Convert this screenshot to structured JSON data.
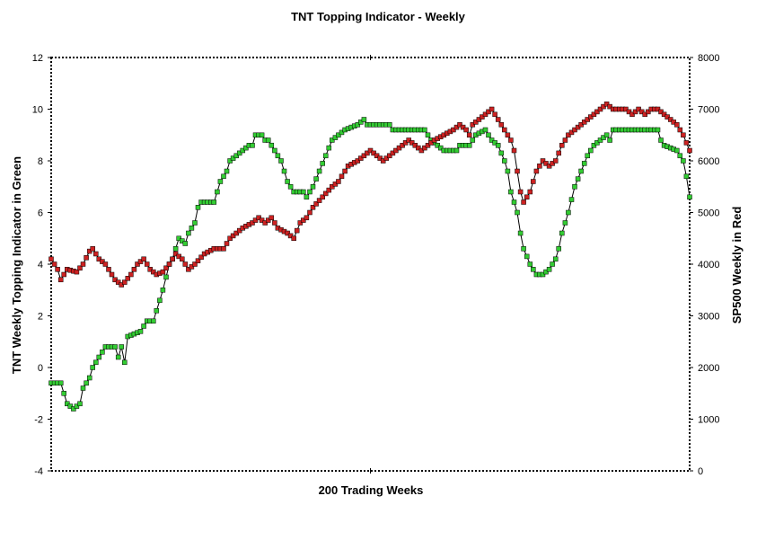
{
  "chart_data": {
    "type": "line",
    "title": "TNT Topping Indicator - Weekly",
    "xlabel": "200 Trading Weeks",
    "ylabel": "TNT Weekly Topping Indicator in Green",
    "y2label": "SP500 Weekly in Red",
    "ylim": [
      -4,
      12
    ],
    "y2lim": [
      0,
      8000
    ],
    "yticks": [
      "12",
      "10",
      "8",
      "6",
      "4",
      "2",
      "0",
      "-2",
      "-4"
    ],
    "y2ticks": [
      "8000",
      "7000",
      "6000",
      "5000",
      "4000",
      "3000",
      "2000",
      "1000",
      "0"
    ],
    "xlim": [
      0,
      200
    ],
    "grid": false,
    "legend": "none",
    "colors": {
      "indicator": "#33cc33",
      "sp500": "#cc2222",
      "line": "#000000"
    },
    "series": [
      {
        "axis": "left",
        "keypoints": [
          [
            0,
            -0.6
          ],
          [
            3,
            -0.6
          ],
          [
            5,
            -1.4
          ],
          [
            7,
            -1.6
          ],
          [
            9,
            -1.4
          ],
          [
            10,
            -0.8
          ],
          [
            12,
            -0.4
          ],
          [
            13,
            0
          ],
          [
            15,
            0.4
          ],
          [
            17,
            0.8
          ],
          [
            20,
            0.8
          ],
          [
            21,
            0.4
          ],
          [
            22,
            0.8
          ],
          [
            23,
            0.2
          ],
          [
            24,
            1.2
          ],
          [
            26,
            1.3
          ],
          [
            28,
            1.4
          ],
          [
            30,
            1.8
          ],
          [
            32,
            1.8
          ],
          [
            33,
            2.2
          ],
          [
            35,
            3.0
          ],
          [
            37,
            4.0
          ],
          [
            38,
            4.2
          ],
          [
            39,
            4.6
          ],
          [
            40,
            5.0
          ],
          [
            42,
            4.8
          ],
          [
            43,
            5.2
          ],
          [
            45,
            5.6
          ],
          [
            46,
            6.2
          ],
          [
            47,
            6.4
          ],
          [
            51,
            6.4
          ],
          [
            52,
            6.8
          ],
          [
            53,
            7.2
          ],
          [
            55,
            7.6
          ],
          [
            56,
            8.0
          ],
          [
            58,
            8.2
          ],
          [
            60,
            8.4
          ],
          [
            62,
            8.6
          ],
          [
            63,
            8.6
          ],
          [
            64,
            9.0
          ],
          [
            66,
            9.0
          ],
          [
            67,
            8.8
          ],
          [
            68,
            8.8
          ],
          [
            70,
            8.4
          ],
          [
            72,
            8.0
          ],
          [
            73,
            7.6
          ],
          [
            74,
            7.2
          ],
          [
            76,
            6.8
          ],
          [
            79,
            6.8
          ],
          [
            80,
            6.6
          ],
          [
            82,
            7.0
          ],
          [
            84,
            7.6
          ],
          [
            86,
            8.2
          ],
          [
            88,
            8.8
          ],
          [
            90,
            9.0
          ],
          [
            92,
            9.2
          ],
          [
            96,
            9.4
          ],
          [
            98,
            9.6
          ],
          [
            99,
            9.4
          ],
          [
            106,
            9.4
          ],
          [
            107,
            9.2
          ],
          [
            117,
            9.2
          ],
          [
            119,
            8.8
          ],
          [
            121,
            8.6
          ],
          [
            123,
            8.4
          ],
          [
            127,
            8.4
          ],
          [
            128,
            8.6
          ],
          [
            131,
            8.6
          ],
          [
            133,
            9.0
          ],
          [
            136,
            9.2
          ],
          [
            138,
            8.8
          ],
          [
            140,
            8.6
          ],
          [
            142,
            8.0
          ],
          [
            143,
            7.6
          ],
          [
            144,
            6.8
          ],
          [
            146,
            6.0
          ],
          [
            147,
            5.2
          ],
          [
            148,
            4.6
          ],
          [
            150,
            4.0
          ],
          [
            152,
            3.6
          ],
          [
            154,
            3.6
          ],
          [
            156,
            3.8
          ],
          [
            158,
            4.2
          ],
          [
            159,
            4.6
          ],
          [
            160,
            5.2
          ],
          [
            162,
            6.0
          ],
          [
            164,
            7.0
          ],
          [
            166,
            7.6
          ],
          [
            168,
            8.2
          ],
          [
            170,
            8.6
          ],
          [
            172,
            8.8
          ],
          [
            174,
            9.0
          ],
          [
            175,
            8.8
          ],
          [
            176,
            9.2
          ],
          [
            190,
            9.2
          ],
          [
            191,
            8.8
          ],
          [
            192,
            8.6
          ],
          [
            196,
            8.4
          ],
          [
            198,
            8.0
          ],
          [
            199,
            7.4
          ],
          [
            200,
            6.6
          ]
        ]
      },
      {
        "axis": "right",
        "keypoints": [
          [
            0,
            4100
          ],
          [
            2,
            3900
          ],
          [
            3,
            3700
          ],
          [
            5,
            3900
          ],
          [
            8,
            3850
          ],
          [
            10,
            4000
          ],
          [
            12,
            4250
          ],
          [
            13,
            4300
          ],
          [
            15,
            4100
          ],
          [
            17,
            4000
          ],
          [
            19,
            3800
          ],
          [
            20,
            3700
          ],
          [
            22,
            3600
          ],
          [
            23,
            3650
          ],
          [
            25,
            3800
          ],
          [
            27,
            4000
          ],
          [
            29,
            4100
          ],
          [
            31,
            3900
          ],
          [
            33,
            3800
          ],
          [
            35,
            3850
          ],
          [
            37,
            4000
          ],
          [
            39,
            4200
          ],
          [
            41,
            4100
          ],
          [
            43,
            3900
          ],
          [
            45,
            4000
          ],
          [
            48,
            4200
          ],
          [
            51,
            4300
          ],
          [
            54,
            4300
          ],
          [
            56,
            4500
          ],
          [
            60,
            4700
          ],
          [
            63,
            4800
          ],
          [
            65,
            4900
          ],
          [
            67,
            4800
          ],
          [
            69,
            4900
          ],
          [
            71,
            4700
          ],
          [
            74,
            4600
          ],
          [
            76,
            4500
          ],
          [
            78,
            4800
          ],
          [
            80,
            4900
          ],
          [
            82,
            5100
          ],
          [
            85,
            5300
          ],
          [
            88,
            5500
          ],
          [
            90,
            5600
          ],
          [
            93,
            5900
          ],
          [
            96,
            6000
          ],
          [
            98,
            6100
          ],
          [
            100,
            6200
          ],
          [
            102,
            6100
          ],
          [
            104,
            6000
          ],
          [
            106,
            6100
          ],
          [
            108,
            6200
          ],
          [
            110,
            6300
          ],
          [
            112,
            6400
          ],
          [
            114,
            6300
          ],
          [
            116,
            6200
          ],
          [
            118,
            6300
          ],
          [
            120,
            6400
          ],
          [
            123,
            6500
          ],
          [
            126,
            6600
          ],
          [
            128,
            6700
          ],
          [
            130,
            6600
          ],
          [
            131,
            6500
          ],
          [
            132,
            6700
          ],
          [
            134,
            6800
          ],
          [
            136,
            6900
          ],
          [
            138,
            7000
          ],
          [
            140,
            6800
          ],
          [
            142,
            6600
          ],
          [
            144,
            6400
          ],
          [
            145,
            6200
          ],
          [
            146,
            5800
          ],
          [
            147,
            5400
          ],
          [
            148,
            5200
          ],
          [
            150,
            5400
          ],
          [
            152,
            5800
          ],
          [
            154,
            6000
          ],
          [
            156,
            5900
          ],
          [
            158,
            6000
          ],
          [
            160,
            6300
          ],
          [
            162,
            6500
          ],
          [
            164,
            6600
          ],
          [
            166,
            6700
          ],
          [
            168,
            6800
          ],
          [
            170,
            6900
          ],
          [
            172,
            7000
          ],
          [
            174,
            7100
          ],
          [
            176,
            7000
          ],
          [
            178,
            7000
          ],
          [
            180,
            7000
          ],
          [
            182,
            6900
          ],
          [
            184,
            7000
          ],
          [
            186,
            6900
          ],
          [
            188,
            7000
          ],
          [
            190,
            7000
          ],
          [
            192,
            6900
          ],
          [
            194,
            6800
          ],
          [
            196,
            6700
          ],
          [
            198,
            6500
          ],
          [
            200,
            6200
          ]
        ]
      }
    ]
  }
}
